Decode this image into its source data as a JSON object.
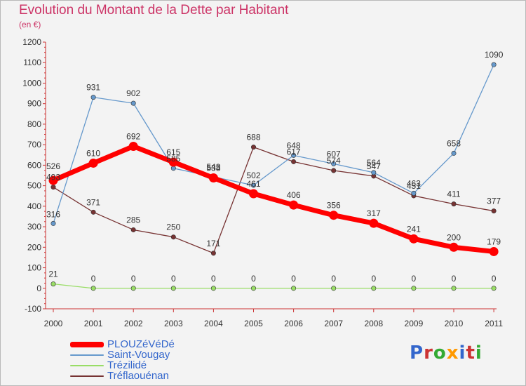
{
  "header": {
    "title": "Evolution du Montant de la Dette par Habitant",
    "subtitle": "(en €)"
  },
  "logo": {
    "text": "Proxiti",
    "colors": [
      "#3366cc",
      "#cc3333",
      "#33aa33",
      "#ff9900",
      "#3366cc",
      "#cc3333",
      "#33aa33"
    ]
  },
  "chart_data": {
    "type": "line",
    "title": "Evolution du Montant de la Dette par Habitant",
    "subtitle": "(en €)",
    "xlabel": "",
    "ylabel": "",
    "categories": [
      "2000",
      "2001",
      "2002",
      "2003",
      "2004",
      "2005",
      "2006",
      "2007",
      "2008",
      "2009",
      "2010",
      "2011"
    ],
    "ylim": [
      -100,
      1200
    ],
    "yticks": [
      "-100",
      "0",
      "100",
      "200",
      "300",
      "400",
      "500",
      "600",
      "700",
      "800",
      "900",
      "1000",
      "1100",
      "1200"
    ],
    "grid": false,
    "legend_position": "bottom-left",
    "series": [
      {
        "name": "PLOUZéVéDé",
        "color": "#ff0000",
        "values": [
          526,
          610,
          692,
          615,
          538,
          461,
          406,
          356,
          317,
          241,
          200,
          179
        ],
        "labels": [
          "526",
          "610",
          "692",
          "615",
          "538",
          "461",
          "406",
          "356",
          "317",
          "241",
          "200",
          "179"
        ]
      },
      {
        "name": "Saint-Vougay",
        "color": "#6699cc",
        "values": [
          316,
          931,
          902,
          585,
          543,
          502,
          648,
          607,
          564,
          463,
          658,
          1090
        ],
        "labels": [
          "316",
          "931",
          "902",
          "585",
          "543",
          "502",
          "648",
          "607",
          "564",
          "463",
          "658",
          "1090"
        ]
      },
      {
        "name": "Trézilidé",
        "color": "#99dd66",
        "values": [
          21,
          0,
          0,
          0,
          0,
          0,
          0,
          0,
          0,
          0,
          0,
          0
        ],
        "labels": [
          "21",
          "0",
          "0",
          "0",
          "0",
          "0",
          "0",
          "0",
          "0",
          "0",
          "0",
          "0"
        ]
      },
      {
        "name": "Tréflaouénan",
        "color": "#773333",
        "values": [
          493,
          371,
          285,
          250,
          171,
          688,
          617,
          574,
          547,
          451,
          411,
          377
        ],
        "labels": [
          "493",
          "371",
          "285",
          "250",
          "171",
          "688",
          "617",
          "574",
          "547",
          "451",
          "411",
          "377"
        ]
      }
    ]
  }
}
